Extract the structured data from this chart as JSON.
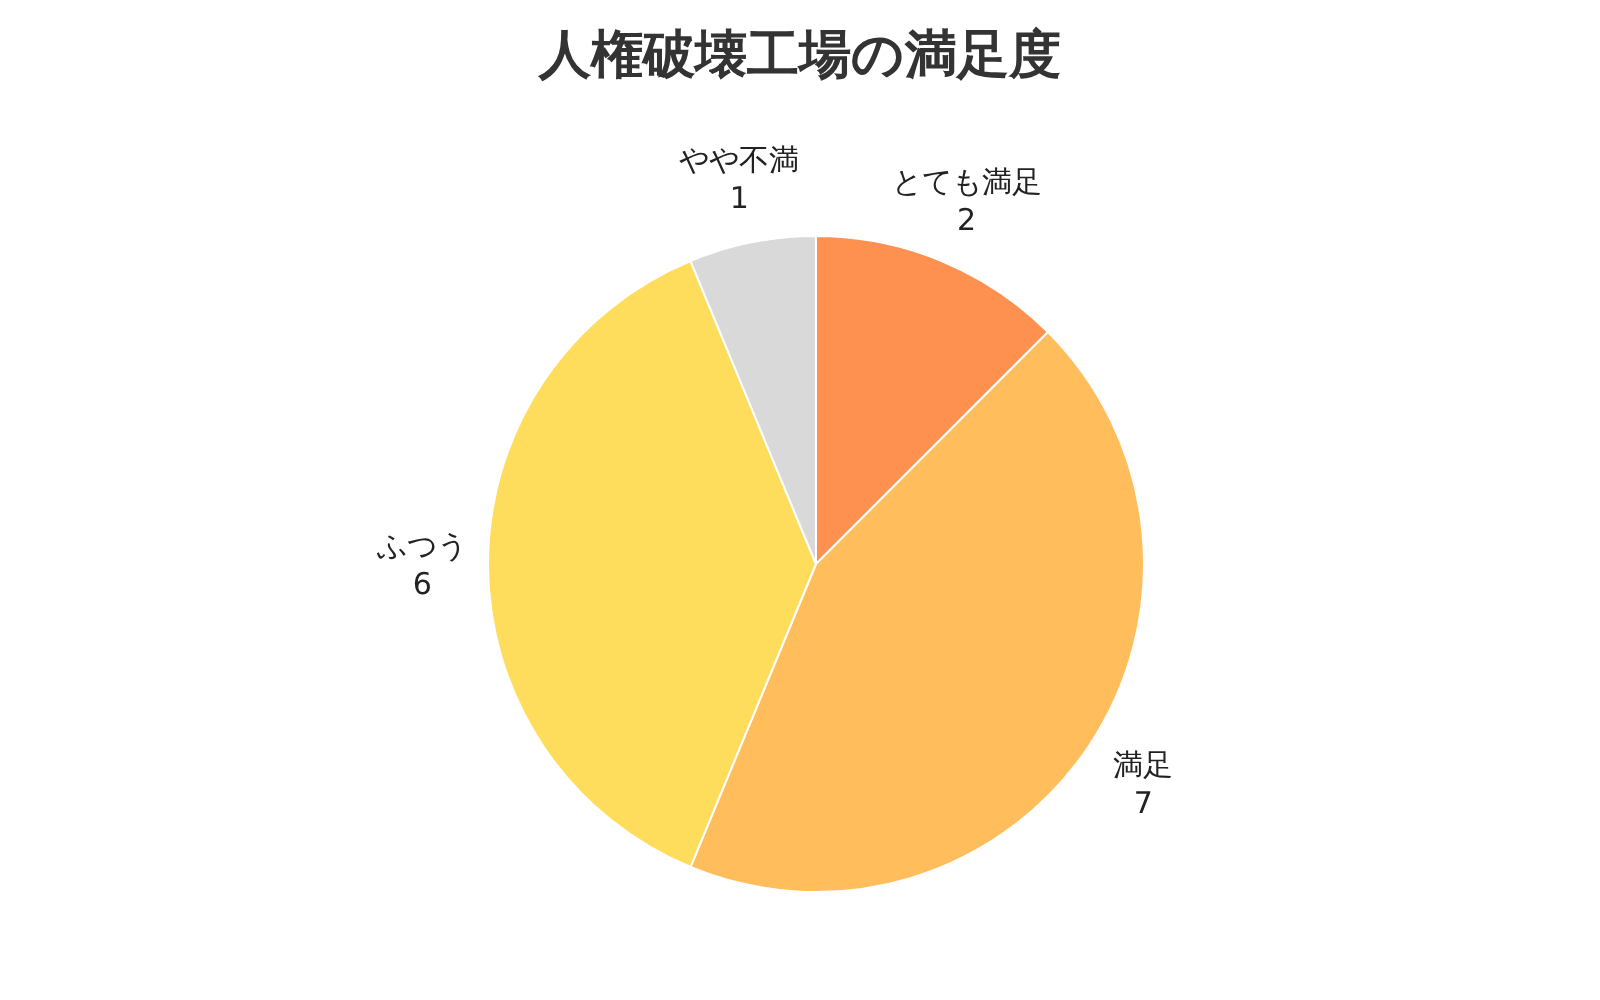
{
  "chart_data": {
    "type": "pie",
    "title": "人権破壊工場の満足度",
    "categories": [
      "とても満足",
      "満足",
      "ふつう",
      "やや不満"
    ],
    "values": [
      2,
      7,
      6,
      1
    ],
    "colors": [
      "#ff9150",
      "#ffbd5c",
      "#ffdd5c",
      "#d9d9d9"
    ],
    "data_labels": true
  }
}
